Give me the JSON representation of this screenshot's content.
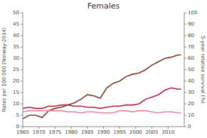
{
  "chart_data": {
    "type": "line",
    "title": "Females",
    "y_label": "Rates per 100 000 (Norway-2014)",
    "y2_label": "5-year relative survival (%)",
    "x": [
      1965,
      1967,
      1969,
      1971,
      1973,
      1975,
      1977,
      1979,
      1981,
      1983,
      1985,
      1987,
      1989,
      1991,
      1993,
      1995,
      1997,
      1999,
      2001,
      2003,
      2005,
      2007,
      2009,
      2011,
      2013,
      2014
    ],
    "xlim": [
      1965,
      2015
    ],
    "xticks": [
      1965,
      1970,
      1975,
      1980,
      1985,
      1990,
      1995,
      2000,
      2005,
      2010
    ],
    "ylim": [
      0,
      50
    ],
    "yticks": [
      0,
      5,
      10,
      15,
      20,
      25,
      30,
      35,
      40,
      45,
      50
    ],
    "y2lim": [
      0,
      100
    ],
    "y2ticks": [
      0,
      10,
      20,
      30,
      40,
      50,
      60,
      70,
      80,
      90,
      100
    ],
    "grid": false,
    "series": [
      {
        "color": "#7a3b1c",
        "axis": "y2",
        "values": [
          7,
          10,
          10,
          8,
          14,
          16,
          17,
          19,
          21,
          24,
          28,
          27,
          25,
          34,
          38,
          40,
          44,
          46,
          47,
          50,
          54,
          57,
          60,
          61,
          63,
          63
        ]
      },
      {
        "color": "#b5243c",
        "values": [
          8,
          8.5,
          8,
          8,
          9,
          9,
          9.5,
          9.5,
          9,
          9,
          8.5,
          8.5,
          8,
          8.5,
          9,
          9,
          9.5,
          9.5,
          10,
          12,
          13,
          14,
          16,
          17,
          16.5,
          16.5
        ]
      },
      {
        "color": "#e6809c",
        "values": [
          6.5,
          7,
          7,
          7,
          7,
          7,
          7,
          6.5,
          6.5,
          6,
          6.5,
          6.5,
          6,
          6,
          6,
          7,
          7,
          6.5,
          7,
          7,
          6.5,
          6,
          6.5,
          6.5,
          6,
          6
        ]
      }
    ]
  }
}
